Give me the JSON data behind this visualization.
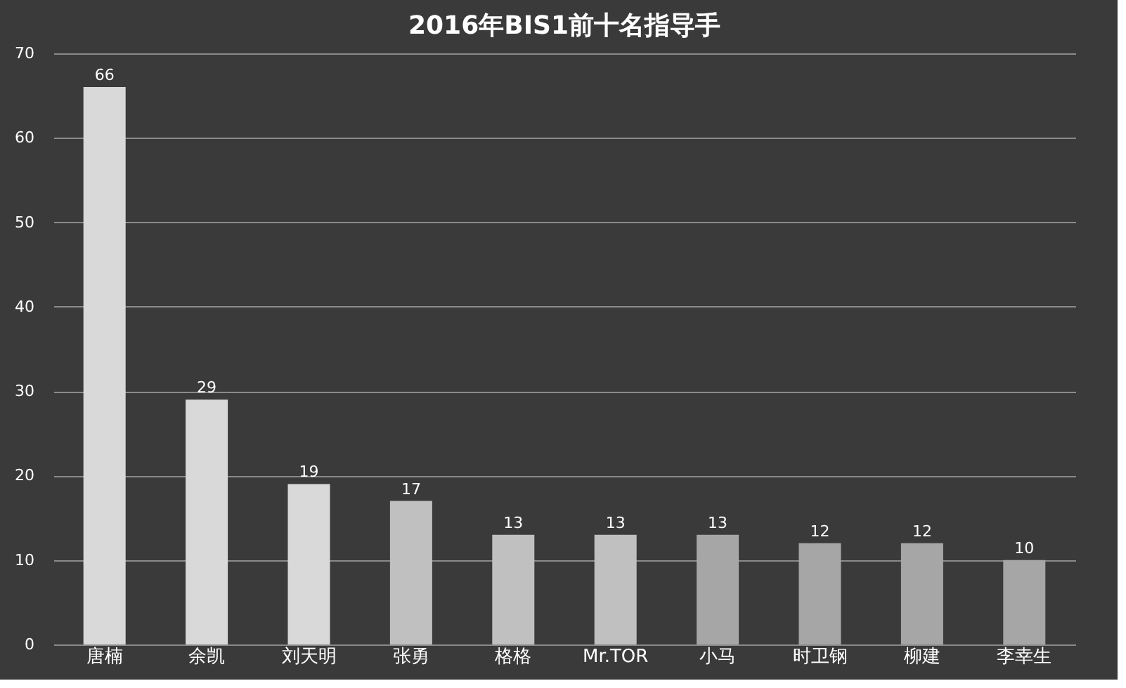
{
  "chart_data": {
    "type": "bar",
    "title": "2016年BIS1前十名指导手",
    "categories": [
      "唐楠",
      "余凯",
      "刘天明",
      "张勇",
      "格格",
      "Mr.TOR",
      "小马",
      "时卫钢",
      "柳建",
      "李幸生"
    ],
    "values": [
      66,
      29,
      19,
      17,
      13,
      13,
      13,
      12,
      12,
      10
    ],
    "colors": [
      "#d9d9d9",
      "#d9d9d9",
      "#d9d9d9",
      "#c0c0c0",
      "#c0c0c0",
      "#c0c0c0",
      "#a6a6a6",
      "#a6a6a6",
      "#a6a6a6",
      "#a6a6a6"
    ],
    "ylim": [
      0,
      70
    ],
    "yticks": [
      0,
      10,
      20,
      30,
      40,
      50,
      60,
      70
    ],
    "grid": "y",
    "data_labels": true
  }
}
